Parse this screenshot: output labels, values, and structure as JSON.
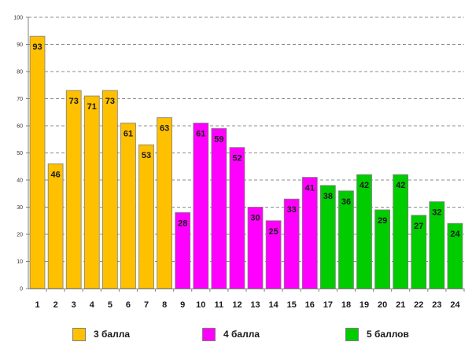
{
  "chart_data": {
    "type": "bar",
    "title": "",
    "xlabel": "",
    "ylabel": "",
    "ylim": [
      0,
      100
    ],
    "yticks": [
      0,
      10,
      20,
      30,
      40,
      50,
      60,
      70,
      80,
      90,
      100
    ],
    "grid": true,
    "categories": [
      "1",
      "2",
      "3",
      "4",
      "5",
      "6",
      "7",
      "8",
      "9",
      "10",
      "11",
      "12",
      "13",
      "14",
      "15",
      "16",
      "17",
      "18",
      "19",
      "20",
      "21",
      "22",
      "23",
      "24"
    ],
    "values": [
      93,
      46,
      73,
      71,
      73,
      61,
      53,
      63,
      28,
      61,
      59,
      52,
      30,
      25,
      33,
      41,
      38,
      36,
      42,
      29,
      42,
      27,
      32,
      24
    ],
    "groups": [
      0,
      0,
      0,
      0,
      0,
      0,
      0,
      0,
      1,
      1,
      1,
      1,
      1,
      1,
      1,
      1,
      2,
      2,
      2,
      2,
      2,
      2,
      2,
      2
    ],
    "series": [
      {
        "name": "3 балла",
        "color": "#FFC000"
      },
      {
        "name": "4 балла",
        "color": "#FF00FF"
      },
      {
        "name": "5 баллов",
        "color": "#00CC00"
      }
    ]
  }
}
